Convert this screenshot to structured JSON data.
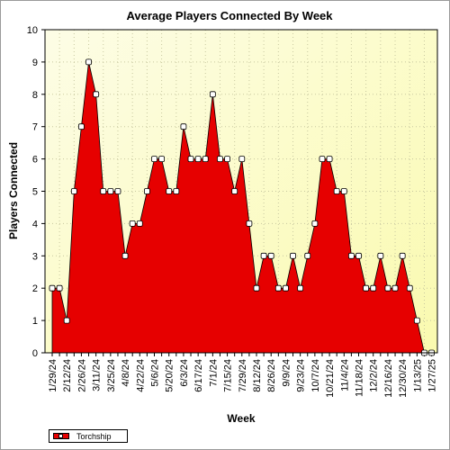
{
  "chart_data": {
    "type": "area",
    "title": "Average Players Connected By Week",
    "xlabel": "Week",
    "ylabel": "Players Connected",
    "ylim": [
      0,
      10
    ],
    "yticks": [
      0,
      1,
      2,
      3,
      4,
      5,
      6,
      7,
      8,
      9,
      10
    ],
    "grid": true,
    "legend_position": "bottom-left",
    "x": [
      "1/29/24",
      "2/5/24",
      "2/12/24",
      "2/19/24",
      "2/26/24",
      "3/4/24",
      "3/11/24",
      "3/18/24",
      "3/25/24",
      "4/1/24",
      "4/8/24",
      "4/15/24",
      "4/22/24",
      "4/29/24",
      "5/6/24",
      "5/13/24",
      "5/20/24",
      "5/27/24",
      "6/3/24",
      "6/10/24",
      "6/17/24",
      "6/24/24",
      "7/1/24",
      "7/8/24",
      "7/15/24",
      "7/22/24",
      "7/29/24",
      "8/5/24",
      "8/12/24",
      "8/19/24",
      "8/26/24",
      "9/2/24",
      "9/9/24",
      "9/16/24",
      "9/23/24",
      "9/30/24",
      "10/7/24",
      "10/14/24",
      "10/21/24",
      "10/28/24",
      "11/4/24",
      "11/11/24",
      "11/18/24",
      "11/25/24",
      "12/2/24",
      "12/9/24",
      "12/16/24",
      "12/23/24",
      "12/30/24",
      "1/6/25",
      "1/13/25",
      "1/20/25",
      "1/27/25"
    ],
    "tick_labels": [
      "1/29/24",
      "2/12/24",
      "2/26/24",
      "3/11/24",
      "3/25/24",
      "4/8/24",
      "4/22/24",
      "5/6/24",
      "5/20/24",
      "6/3/24",
      "6/17/24",
      "7/1/24",
      "7/15/24",
      "7/29/24",
      "8/12/24",
      "8/26/24",
      "9/9/24",
      "9/23/24",
      "10/7/24",
      "10/21/24",
      "11/4/24",
      "11/18/24",
      "12/2/24",
      "12/16/24",
      "12/30/24",
      "1/13/25",
      "1/27/25"
    ],
    "series": [
      {
        "name": "Torchship",
        "color": "#e60000",
        "values": [
          2,
          2,
          1,
          5,
          7,
          9,
          8,
          5,
          5,
          5,
          3,
          4,
          4,
          5,
          6,
          6,
          5,
          5,
          7,
          6,
          6,
          6,
          8,
          6,
          6,
          5,
          6,
          4,
          2,
          3,
          3,
          2,
          2,
          3,
          2,
          3,
          4,
          6,
          6,
          5,
          5,
          3,
          3,
          2,
          2,
          3,
          2,
          2,
          3,
          2,
          1,
          0,
          0
        ]
      }
    ]
  }
}
